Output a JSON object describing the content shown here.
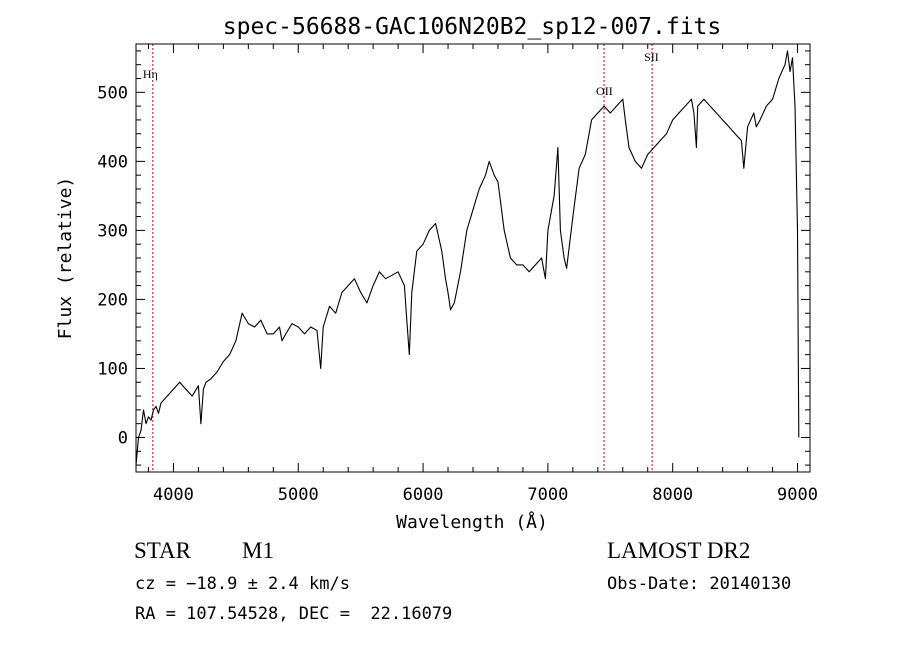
{
  "chart_data": {
    "type": "line",
    "title": "spec-56688-GAC106N20B2_sp12-007.fits",
    "xlabel": "Wavelength (Å)",
    "ylabel": "Flux (relative)",
    "xlim": [
      3700,
      9100
    ],
    "ylim": [
      -50,
      570
    ],
    "x_ticks": [
      4000,
      5000,
      6000,
      7000,
      8000,
      9000
    ],
    "y_ticks": [
      0,
      100,
      200,
      300,
      400,
      500
    ],
    "grid": false,
    "series": [
      {
        "x": [
          3700,
          3720,
          3740,
          3760,
          3780,
          3800,
          3820,
          3840,
          3860,
          3880,
          3900,
          3950,
          4000,
          4050,
          4100,
          4150,
          4200,
          4220,
          4240,
          4260,
          4300,
          4350,
          4400,
          4450,
          4500,
          4550,
          4600,
          4650,
          4700,
          4750,
          4800,
          4850,
          4870,
          4900,
          4950,
          5000,
          5050,
          5100,
          5150,
          5180,
          5200,
          5250,
          5300,
          5350,
          5400,
          5450,
          5500,
          5550,
          5600,
          5650,
          5700,
          5750,
          5800,
          5850,
          5870,
          5890,
          5910,
          5950,
          6000,
          6050,
          6100,
          6150,
          6180,
          6200,
          6220,
          6250,
          6300,
          6350,
          6400,
          6450,
          6500,
          6530,
          6550,
          6570,
          6600,
          6650,
          6700,
          6750,
          6800,
          6850,
          6900,
          6950,
          6980,
          7000,
          7050,
          7080,
          7100,
          7130,
          7150,
          7200,
          7250,
          7300,
          7350,
          7400,
          7450,
          7500,
          7550,
          7600,
          7620,
          7650,
          7700,
          7750,
          7800,
          7850,
          7900,
          7950,
          8000,
          8050,
          8100,
          8150,
          8170,
          8190,
          8200,
          8250,
          8300,
          8350,
          8400,
          8450,
          8500,
          8550,
          8570,
          8600,
          8650,
          8670,
          8700,
          8750,
          8800,
          8850,
          8900,
          8920,
          8940,
          8960,
          8980,
          9000,
          9010
        ],
        "y": [
          -40,
          0,
          10,
          40,
          20,
          30,
          25,
          40,
          45,
          35,
          50,
          60,
          70,
          80,
          70,
          60,
          75,
          20,
          70,
          80,
          85,
          95,
          110,
          120,
          140,
          180,
          165,
          160,
          170,
          150,
          150,
          160,
          140,
          150,
          165,
          160,
          150,
          160,
          155,
          100,
          160,
          190,
          180,
          210,
          220,
          230,
          210,
          195,
          220,
          240,
          230,
          235,
          240,
          220,
          170,
          120,
          210,
          270,
          280,
          300,
          310,
          270,
          230,
          210,
          185,
          195,
          240,
          300,
          330,
          360,
          380,
          400,
          390,
          380,
          370,
          300,
          260,
          250,
          250,
          240,
          250,
          260,
          230,
          300,
          350,
          420,
          300,
          260,
          245,
          320,
          390,
          410,
          460,
          470,
          480,
          470,
          480,
          490,
          460,
          420,
          400,
          390,
          410,
          420,
          430,
          440,
          460,
          470,
          480,
          490,
          470,
          420,
          480,
          490,
          480,
          470,
          460,
          450,
          440,
          430,
          390,
          450,
          470,
          450,
          460,
          480,
          490,
          520,
          540,
          560,
          530,
          550,
          480,
          300,
          0
        ]
      }
    ],
    "annotations": [
      {
        "label": "Hη",
        "x": 3835
      },
      {
        "label": "OII",
        "x": 7450
      },
      {
        "label": "SII",
        "x": 7835
      }
    ]
  },
  "info": {
    "object_class": "STAR",
    "subclass": "M1",
    "survey": "LAMOST DR2",
    "cz": "cz = −18.9 ± 2.4 km/s",
    "obs_date": "Obs-Date: 20140130",
    "coords": "RA = 107.54528, DEC =  22.16079"
  },
  "colors": {
    "line": "#000000",
    "marker": "#c00000",
    "axes": "#000000"
  }
}
